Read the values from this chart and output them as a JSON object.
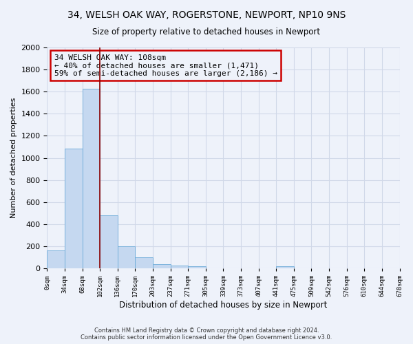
{
  "title_line1": "34, WELSH OAK WAY, ROGERSTONE, NEWPORT, NP10 9NS",
  "title_line2": "Size of property relative to detached houses in Newport",
  "xlabel": "Distribution of detached houses by size in Newport",
  "ylabel": "Number of detached properties",
  "footer_line1": "Contains HM Land Registry data © Crown copyright and database right 2024.",
  "footer_line2": "Contains public sector information licensed under the Open Government Licence v3.0.",
  "annotation_line1": "34 WELSH OAK WAY: 108sqm",
  "annotation_line2": "← 40% of detached houses are smaller (1,471)",
  "annotation_line3": "59% of semi-detached houses are larger (2,186) →",
  "bar_values": [
    165,
    1085,
    1625,
    480,
    200,
    100,
    40,
    25,
    20,
    0,
    0,
    0,
    0,
    20,
    0,
    0,
    0,
    0,
    0,
    0
  ],
  "bin_labels": [
    "0sqm",
    "34sqm",
    "68sqm",
    "102sqm",
    "136sqm",
    "170sqm",
    "203sqm",
    "237sqm",
    "271sqm",
    "305sqm",
    "339sqm",
    "373sqm",
    "407sqm",
    "441sqm",
    "475sqm",
    "509sqm",
    "542sqm",
    "576sqm",
    "610sqm",
    "644sqm",
    "678sqm"
  ],
  "bar_color": "#c5d8f0",
  "bar_edge_color": "#6baad8",
  "vline_x": 3,
  "vline_color": "#8b0000",
  "annotation_box_color": "#cc0000",
  "background_color": "#eef2fa",
  "grid_color": "#d0d8e8",
  "ylim": [
    0,
    2000
  ],
  "yticks": [
    0,
    200,
    400,
    600,
    800,
    1000,
    1200,
    1400,
    1600,
    1800,
    2000
  ]
}
